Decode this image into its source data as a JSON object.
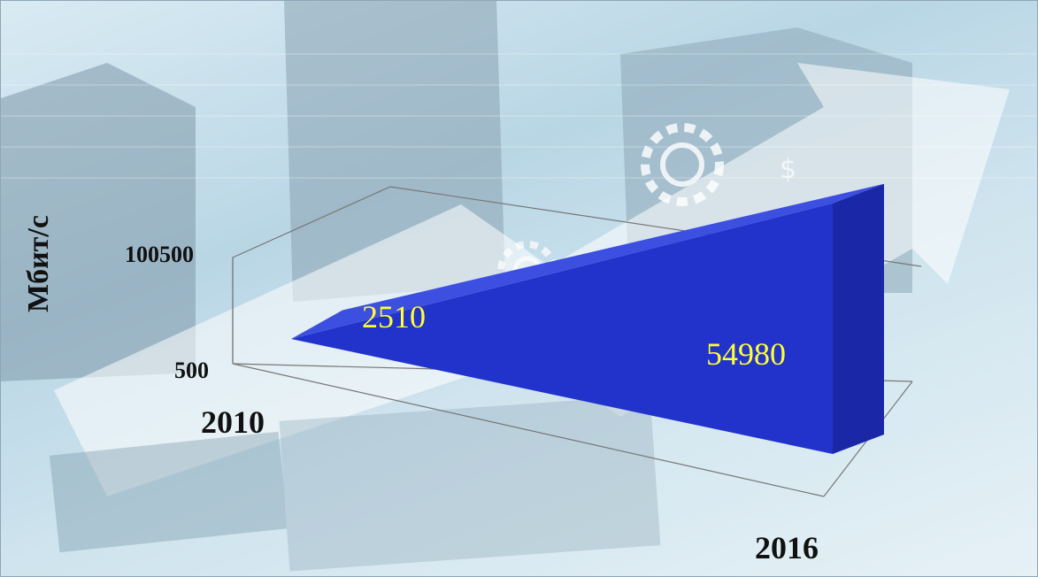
{
  "chart_data": {
    "type": "area",
    "x": [
      "2010",
      "2016"
    ],
    "values": [
      2510,
      54980
    ],
    "data_labels": [
      "2510",
      "54980"
    ],
    "ylabel": "Мбит/с",
    "ytick_labels": [
      "100500",
      "500"
    ],
    "ylim": [
      500,
      100500
    ],
    "xtick_labels": [
      "2010",
      "2016"
    ],
    "grid": false,
    "style": "3d-ribbon"
  },
  "colors": {
    "ribbon_top": "#3d4fe0",
    "ribbon_front": "#2233cc",
    "ribbon_side": "#1a28a8",
    "data_label": "#ffff33"
  }
}
